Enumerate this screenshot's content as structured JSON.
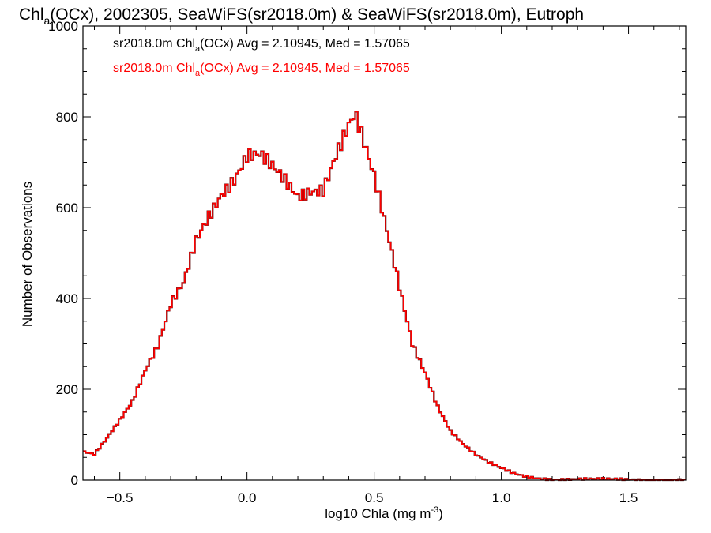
{
  "chart_data": {
    "type": "histogram-step",
    "title": {
      "pre": "Chl",
      "sub": "a",
      "post": "(OCx), 2002305, SeaWiFS(sr2018.0m) & SeaWiFS(sr2018.0m), Eutroph"
    },
    "xlabel": {
      "pre": "log10 Chla (mg m",
      "sup": "-3",
      "post": ")"
    },
    "ylabel": "Number of Observations",
    "xlim": [
      -0.645,
      1.725
    ],
    "ylim": [
      0,
      1000
    ],
    "xticks": [
      -0.5,
      0.0,
      0.5,
      1.0,
      1.5
    ],
    "xtick_labels": [
      "−0.5",
      "0.0",
      "0.5",
      "1.0",
      "1.5"
    ],
    "yticks": [
      0,
      200,
      400,
      600,
      800,
      1000
    ],
    "ytick_labels": [
      "0",
      "200",
      "400",
      "600",
      "800",
      "1000"
    ],
    "grid": false,
    "annotations": [
      {
        "pre": "sr2018.0m Chl",
        "sub": "a",
        "post": "(OCx) Avg = 2.10945, Med = 1.57065",
        "color": "#000000"
      },
      {
        "pre": "sr2018.0m Chl",
        "sub": "a",
        "post": "(OCx) Avg = 2.10945, Med = 1.57065",
        "color": "#ff0000"
      }
    ],
    "series": [
      {
        "color": "#000000",
        "x": [
          -0.64,
          -0.6,
          -0.55,
          -0.5,
          -0.45,
          -0.4,
          -0.35,
          -0.3,
          -0.25,
          -0.2,
          -0.15,
          -0.1,
          -0.05,
          0.0,
          0.05,
          0.1,
          0.15,
          0.2,
          0.25,
          0.3,
          0.35,
          0.4,
          0.425,
          0.45,
          0.5,
          0.55,
          0.6,
          0.65,
          0.7,
          0.75,
          0.8,
          0.85,
          0.9,
          0.95,
          1.0,
          1.05,
          1.1,
          1.15,
          1.2,
          1.3,
          1.4,
          1.5,
          1.6,
          1.725
        ],
        "values": [
          62,
          58,
          95,
          135,
          175,
          240,
          290,
          380,
          430,
          530,
          590,
          640,
          670,
          715,
          710,
          680,
          650,
          620,
          640,
          650,
          730,
          790,
          810,
          760,
          660,
          540,
          420,
          300,
          240,
          165,
          110,
          80,
          55,
          38,
          25,
          14,
          8,
          5,
          3,
          2,
          1,
          1,
          1,
          1
        ]
      },
      {
        "color": "#ff0000",
        "x": [
          -0.64,
          -0.6,
          -0.55,
          -0.5,
          -0.45,
          -0.4,
          -0.35,
          -0.3,
          -0.25,
          -0.2,
          -0.15,
          -0.1,
          -0.05,
          0.0,
          0.05,
          0.1,
          0.15,
          0.2,
          0.25,
          0.3,
          0.35,
          0.4,
          0.425,
          0.45,
          0.5,
          0.55,
          0.6,
          0.65,
          0.7,
          0.75,
          0.8,
          0.85,
          0.9,
          0.95,
          1.0,
          1.05,
          1.1,
          1.15,
          1.2,
          1.3,
          1.4,
          1.5,
          1.6,
          1.725
        ],
        "values": [
          62,
          58,
          95,
          135,
          175,
          240,
          290,
          380,
          430,
          530,
          590,
          640,
          670,
          715,
          710,
          680,
          650,
          620,
          640,
          650,
          730,
          790,
          810,
          760,
          660,
          540,
          420,
          300,
          240,
          165,
          110,
          80,
          55,
          38,
          25,
          14,
          8,
          5,
          3,
          2,
          1,
          1,
          1,
          1
        ]
      }
    ]
  }
}
